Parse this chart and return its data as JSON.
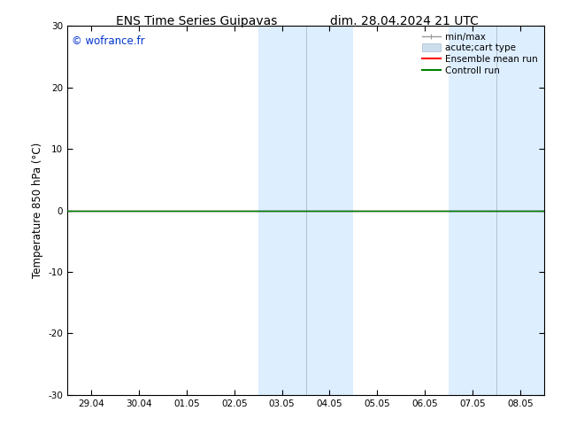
{
  "title_left": "ENS Time Series Guipavas",
  "title_right": "dim. 28.04.2024 21 UTC",
  "ylabel": "Temperature 850 hPa (°C)",
  "ylim": [
    -30,
    30
  ],
  "yticks": [
    -30,
    -20,
    -10,
    0,
    10,
    20,
    30
  ],
  "xtick_labels": [
    "29.04",
    "30.04",
    "01.05",
    "02.05",
    "03.05",
    "04.05",
    "05.05",
    "06.05",
    "07.05",
    "08.05"
  ],
  "xtick_positions": [
    0,
    1,
    2,
    3,
    4,
    5,
    6,
    7,
    8,
    9
  ],
  "xmin": -0.5,
  "xmax": 9.5,
  "shaded_regions": [
    {
      "xmin": 3.5,
      "xmax": 4.5,
      "color": "#ddeeff"
    },
    {
      "xmin": 4.5,
      "xmax": 5.5,
      "color": "#ddeeff"
    },
    {
      "xmin": 7.5,
      "xmax": 8.5,
      "color": "#ddeeff"
    },
    {
      "xmin": 8.5,
      "xmax": 9.5,
      "color": "#ddeeff"
    }
  ],
  "shaded_vlines": [
    4.5,
    8.5
  ],
  "flat_line_y": 0.0,
  "flat_line_color": "#008000",
  "zero_line_color": "#000000",
  "watermark_text": "© wofrance.fr",
  "watermark_color": "#0033cc",
  "legend_entries": [
    {
      "label": "min/max",
      "color": "#999999",
      "lw": 1.0,
      "type": "minmax"
    },
    {
      "label": "acute;cart type",
      "color": "#ccddee",
      "lw": 8,
      "type": "patch"
    },
    {
      "label": "Ensemble mean run",
      "color": "#ff0000",
      "lw": 1.5,
      "type": "line"
    },
    {
      "label": "Controll run",
      "color": "#008000",
      "lw": 1.5,
      "type": "line"
    }
  ],
  "background_color": "#ffffff",
  "spine_color": "#000000",
  "tick_fontsize": 7.5,
  "ylabel_fontsize": 8.5,
  "legend_fontsize": 7.5,
  "title_fontsize": 10
}
